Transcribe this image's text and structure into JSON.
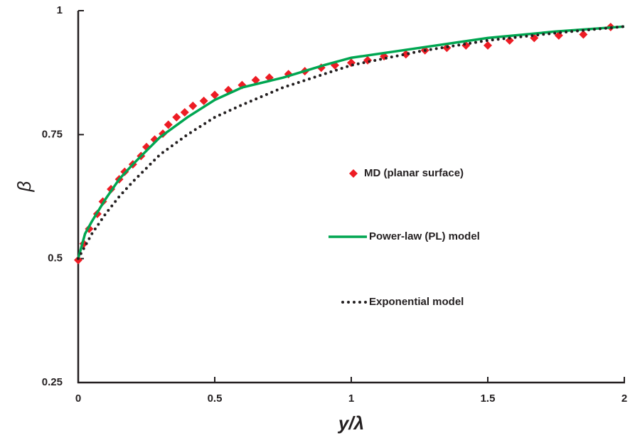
{
  "chart_data": {
    "type": "line",
    "x_label": "y/λ",
    "y_label": "β",
    "xlim": [
      0,
      2
    ],
    "ylim": [
      0.25,
      1
    ],
    "xticks": [
      0,
      0.5,
      1,
      1.5,
      2
    ],
    "yticks": [
      0.25,
      0.5,
      0.75,
      1
    ],
    "series": [
      {
        "name": "MD (planar surface)",
        "color": "#ed1c24",
        "style": "markers",
        "x": [
          0,
          0.02,
          0.04,
          0.07,
          0.09,
          0.12,
          0.15,
          0.17,
          0.2,
          0.23,
          0.25,
          0.28,
          0.31,
          0.33,
          0.36,
          0.39,
          0.42,
          0.46,
          0.5,
          0.55,
          0.6,
          0.65,
          0.7,
          0.77,
          0.83,
          0.89,
          0.94,
          1.0,
          1.06,
          1.12,
          1.2,
          1.27,
          1.35,
          1.42,
          1.5,
          1.58,
          1.67,
          1.76,
          1.85,
          1.95
        ],
        "values": [
          0.497,
          0.53,
          0.56,
          0.59,
          0.615,
          0.64,
          0.66,
          0.675,
          0.69,
          0.707,
          0.725,
          0.74,
          0.752,
          0.77,
          0.785,
          0.795,
          0.808,
          0.818,
          0.83,
          0.84,
          0.85,
          0.86,
          0.865,
          0.872,
          0.878,
          0.885,
          0.89,
          0.895,
          0.9,
          0.908,
          0.912,
          0.92,
          0.925,
          0.93,
          0.93,
          0.94,
          0.945,
          0.95,
          0.952,
          0.967
        ]
      },
      {
        "name": "Power-law (PL) model",
        "color": "#00a651",
        "style": "solid",
        "x": [
          0,
          0.025,
          0.05,
          0.1,
          0.15,
          0.2,
          0.3,
          0.4,
          0.5,
          0.6,
          0.75,
          0.9,
          1,
          1.25,
          1.5,
          1.75,
          2
        ],
        "values": [
          0.5,
          0.55,
          0.575,
          0.62,
          0.66,
          0.69,
          0.745,
          0.785,
          0.82,
          0.845,
          0.865,
          0.89,
          0.905,
          0.925,
          0.945,
          0.958,
          0.968
        ]
      },
      {
        "name": "Exponential model",
        "color": "#231f20",
        "style": "dotted",
        "x": [
          0,
          0.025,
          0.05,
          0.1,
          0.15,
          0.2,
          0.3,
          0.4,
          0.5,
          0.6,
          0.75,
          0.9,
          1,
          1.25,
          1.5,
          1.75,
          2
        ],
        "values": [
          0.5,
          0.525,
          0.55,
          0.59,
          0.625,
          0.655,
          0.71,
          0.75,
          0.785,
          0.81,
          0.845,
          0.872,
          0.89,
          0.918,
          0.94,
          0.955,
          0.968
        ]
      }
    ]
  }
}
